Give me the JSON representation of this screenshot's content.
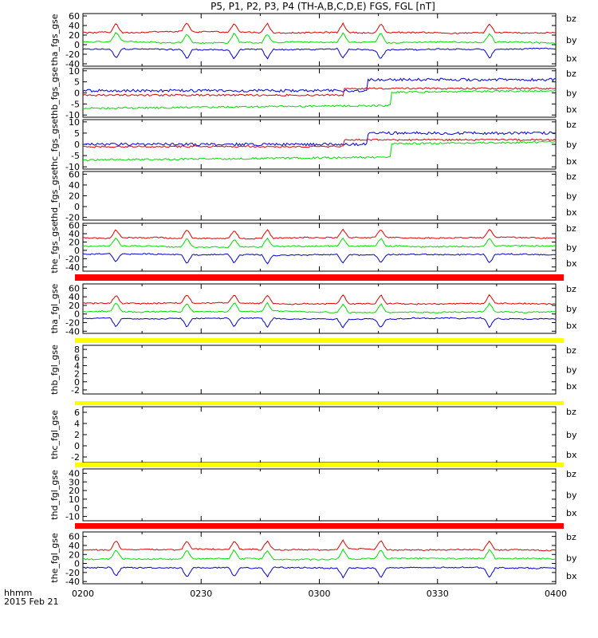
{
  "title": "P5, P1, P2, P3, P4 (TH-A,B,C,D,E) FGS, FGL [nT]",
  "colors": {
    "bz": "#dd0000",
    "by": "#00dd00",
    "bx": "#0000cc",
    "red_bar": "#ff0000",
    "yellow_bar": "#ffff00"
  },
  "chart_data": {
    "type": "line",
    "x_axis": {
      "ticks": [
        "0200",
        "0230",
        "0300",
        "0330",
        "0400"
      ],
      "range": [
        "02:00",
        "04:00"
      ],
      "corner_label": "hhmm",
      "date": "2015 Feb 21"
    },
    "series_names": [
      "bz",
      "by",
      "bx"
    ],
    "panels": [
      {
        "ylabel": "tha_fgs_gse",
        "yticks": [
          "60",
          "40",
          "20",
          "0",
          "-20",
          "-40"
        ],
        "ylim": [
          -45,
          65
        ],
        "has_data": true,
        "levels": {
          "bz": 25,
          "by": 5,
          "bx": -10
        },
        "bar_below": null
      },
      {
        "ylabel": "thb_fgs_gse",
        "yticks": [
          "10",
          "5",
          "0",
          "-5",
          "-10"
        ],
        "ylim": [
          -11,
          11
        ],
        "has_data": true,
        "levels": {
          "bz": -1,
          "by": -7,
          "bx": 1
        },
        "bar_below": null
      },
      {
        "ylabel": "thc_fgs_gse",
        "yticks": [
          "10",
          "5",
          "0",
          "-5",
          "-10"
        ],
        "ylim": [
          -11,
          11
        ],
        "has_data": true,
        "levels": {
          "bz": -1,
          "by": -7,
          "bx": 0
        },
        "bar_below": null
      },
      {
        "ylabel": "thd_fgs_gse",
        "yticks": [
          "60",
          "40",
          "20",
          "0",
          "-20"
        ],
        "ylim": [
          -25,
          65
        ],
        "has_data": false,
        "levels": null,
        "bar_below": null
      },
      {
        "ylabel": "the_fgs_gse",
        "yticks": [
          "60",
          "40",
          "20",
          "0",
          "-20",
          "-40"
        ],
        "ylim": [
          -50,
          65
        ],
        "has_data": true,
        "levels": {
          "bz": 30,
          "by": 10,
          "bx": -10
        },
        "bar_below": "red"
      },
      {
        "ylabel": "tha_fgl_gse",
        "yticks": [
          "60",
          "40",
          "20",
          "0",
          "-20",
          "-40"
        ],
        "ylim": [
          -45,
          70
        ],
        "has_data": true,
        "levels": {
          "bz": 25,
          "by": 5,
          "bx": -10
        },
        "bar_below": "yellow"
      },
      {
        "ylabel": "thb_fgl_gse",
        "yticks": [
          "8",
          "6",
          "4",
          "2",
          "0",
          "-2"
        ],
        "ylim": [
          -3,
          9
        ],
        "has_data": false,
        "levels": null,
        "bar_below": "yellow"
      },
      {
        "ylabel": "thc_fgl_gse",
        "yticks": [
          "6",
          "4",
          "2",
          "0",
          "-2"
        ],
        "ylim": [
          -3,
          7
        ],
        "has_data": false,
        "levels": null,
        "bar_below": "yellow"
      },
      {
        "ylabel": "thd_fgl_gse",
        "yticks": [
          "40",
          "30",
          "20",
          "10",
          "0",
          "-10"
        ],
        "ylim": [
          -15,
          45
        ],
        "has_data": false,
        "levels": null,
        "bar_below": "red"
      },
      {
        "ylabel": "the_fgl_gse",
        "yticks": [
          "60",
          "40",
          "20",
          "0",
          "-20",
          "-40"
        ],
        "ylim": [
          -45,
          70
        ],
        "has_data": true,
        "levels": {
          "bz": 30,
          "by": 10,
          "bx": -10
        },
        "bar_below": null
      }
    ]
  }
}
